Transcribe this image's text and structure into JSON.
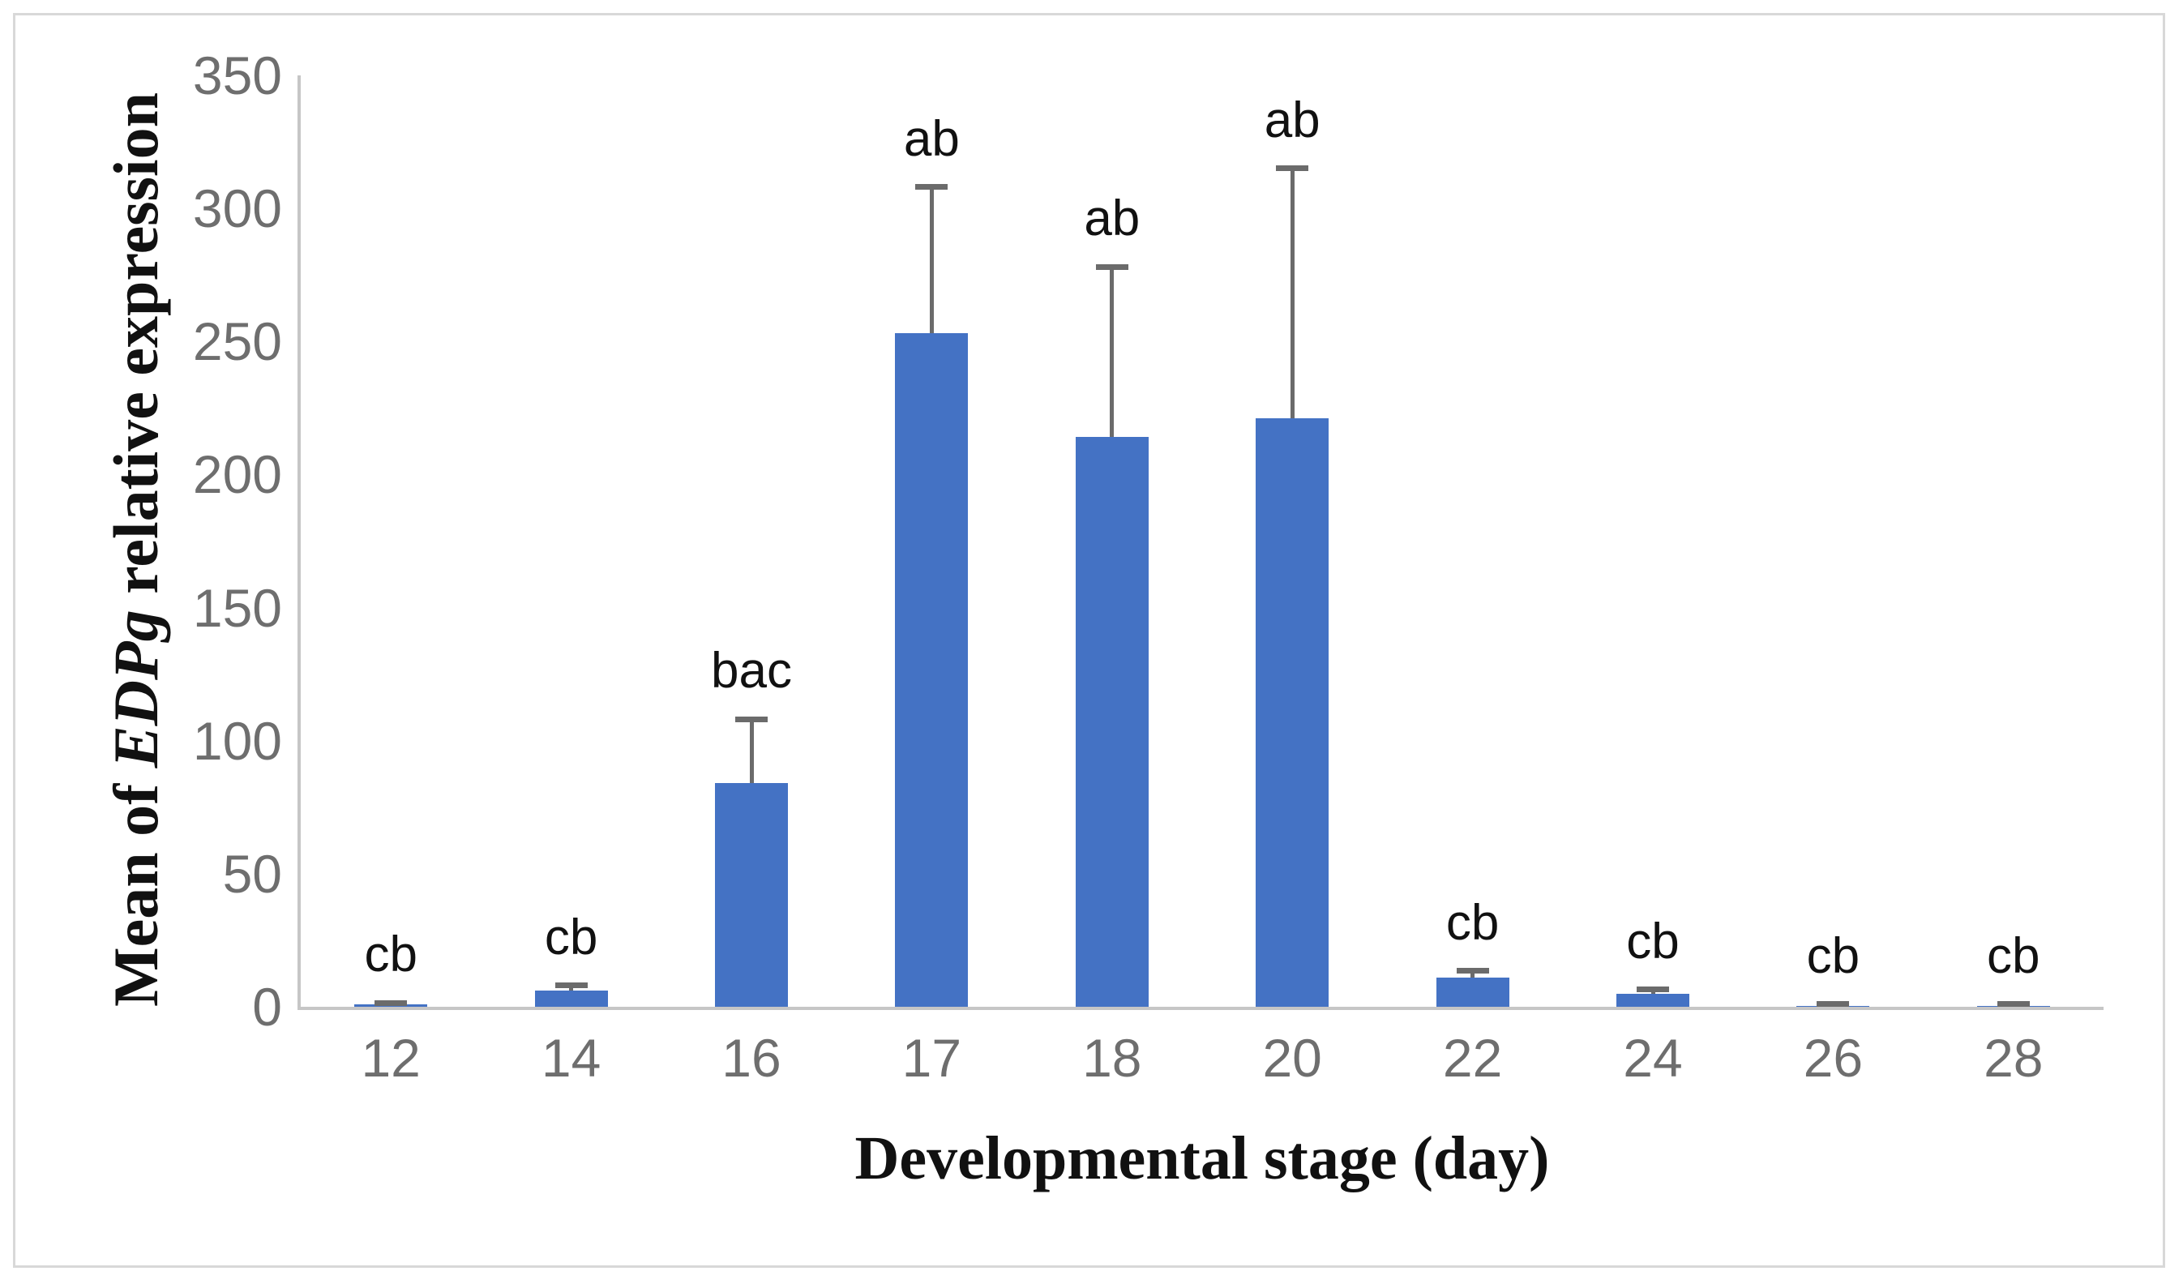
{
  "chart_data": {
    "type": "bar",
    "title": "",
    "xlabel": "Developmental stage (day)",
    "ylabel": "Mean of EDPg relative expression",
    "ylabel_parts": {
      "prefix": "Mean of ",
      "italic_gene": "EDPg",
      "suffix": " relative expression"
    },
    "categories": [
      "12",
      "14",
      "16",
      "17",
      "18",
      "20",
      "22",
      "24",
      "26",
      "28"
    ],
    "values": [
      1,
      6,
      84,
      253,
      214,
      221,
      11,
      5,
      0.2,
      0.2
    ],
    "error_plus": [
      0.5,
      2,
      24,
      55,
      64,
      94,
      2.5,
      1.5,
      0.8,
      0.8
    ],
    "sig_labels": [
      "cb",
      "cb",
      "bac",
      "ab",
      "ab",
      "ab",
      "cb",
      "cb",
      "cb",
      "cb"
    ],
    "yticks": [
      0,
      50,
      100,
      150,
      200,
      250,
      300,
      350
    ],
    "ylim": [
      0,
      350
    ],
    "grid": false,
    "legend": false,
    "bar_color": "#4472C4",
    "error_color": "#6b6b6b",
    "tick_color": "#6e6e6e",
    "axis_color": "#c6c6c6",
    "frame_color": "#d8d8d8"
  }
}
